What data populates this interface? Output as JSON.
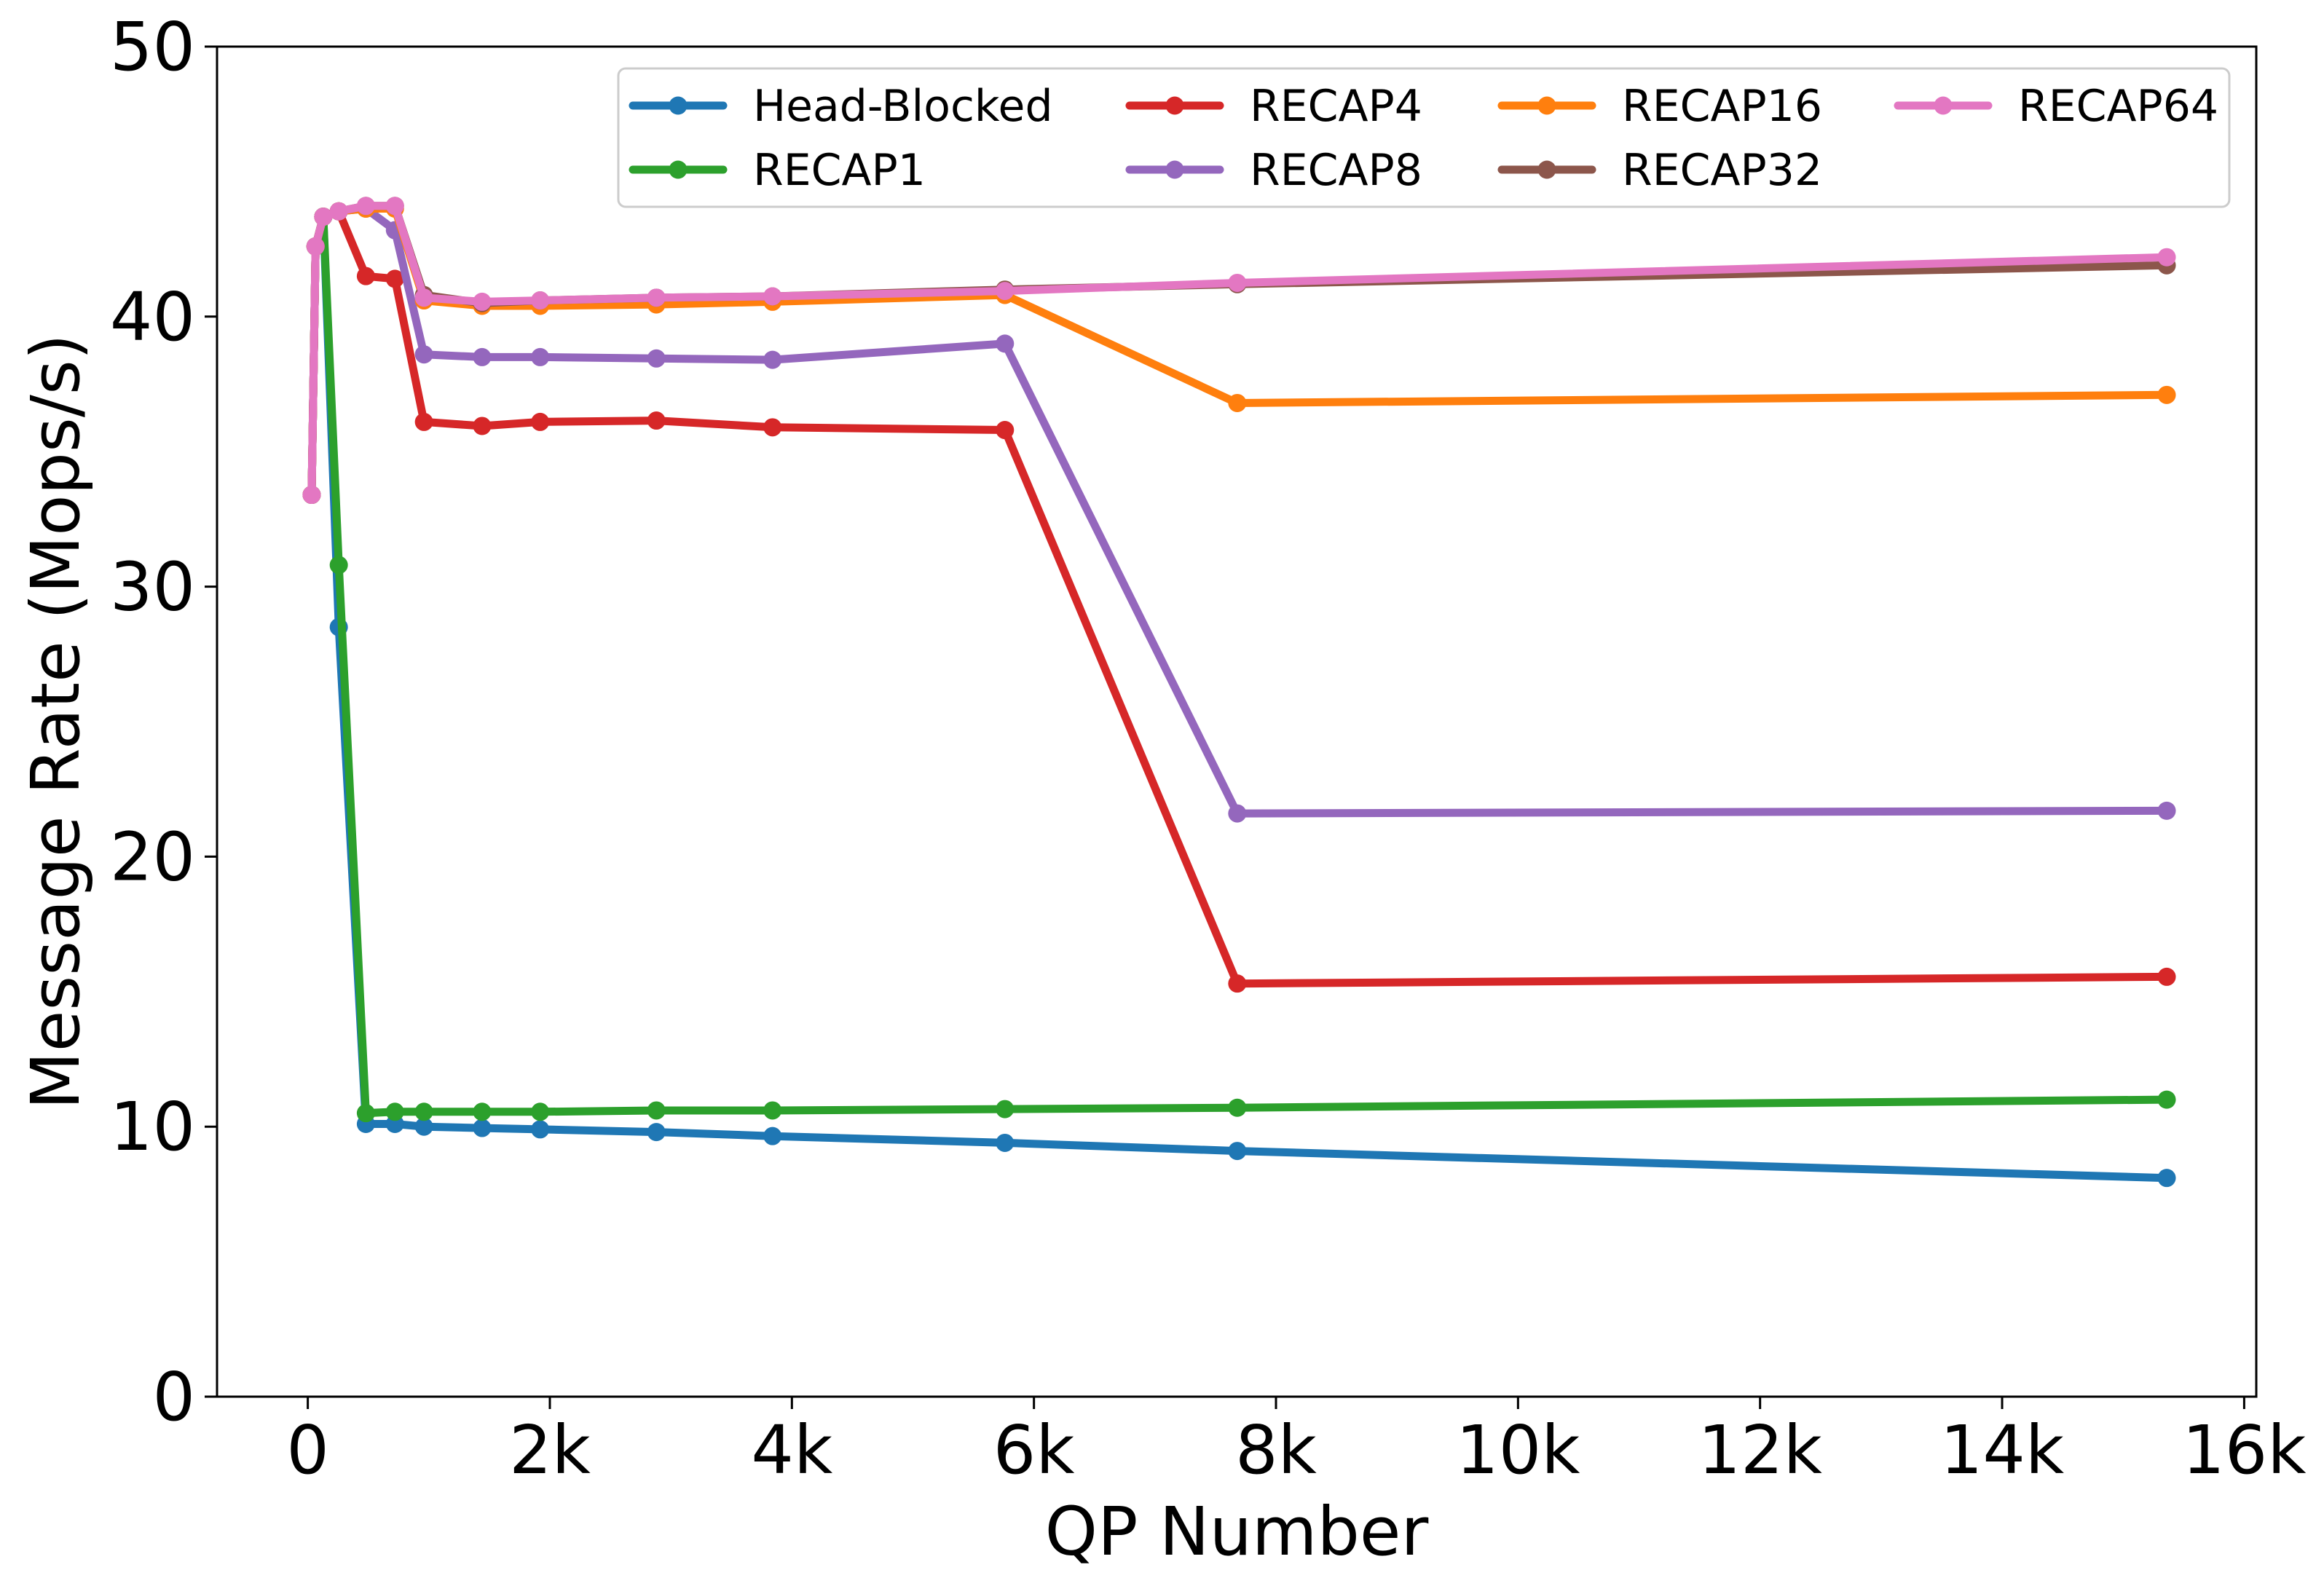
{
  "chart_data": {
    "type": "line",
    "title": "",
    "xlabel": "QP Number",
    "ylabel": "Message Rate (Mops/s)",
    "xlim": [
      -750,
      16100
    ],
    "ylim": [
      0,
      50
    ],
    "grid": false,
    "legend_placement": "top-right",
    "x_ticks": [
      {
        "value": 0,
        "label": "0"
      },
      {
        "value": 2000,
        "label": "2k"
      },
      {
        "value": 4000,
        "label": "4k"
      },
      {
        "value": 6000,
        "label": "6k"
      },
      {
        "value": 8000,
        "label": "8k"
      },
      {
        "value": 10000,
        "label": "10k"
      },
      {
        "value": 12000,
        "label": "12k"
      },
      {
        "value": 14000,
        "label": "14k"
      },
      {
        "value": 16000,
        "label": "16k"
      }
    ],
    "y_ticks": [
      {
        "value": 0,
        "label": "0"
      },
      {
        "value": 10,
        "label": "10"
      },
      {
        "value": 20,
        "label": "20"
      },
      {
        "value": 30,
        "label": "30"
      },
      {
        "value": 40,
        "label": "40"
      },
      {
        "value": 50,
        "label": "50"
      }
    ],
    "x": [
      32,
      64,
      128,
      256,
      480,
      720,
      960,
      1440,
      1920,
      2880,
      3840,
      5760,
      7680,
      15360
    ],
    "series": [
      {
        "name": "Head-Blocked",
        "color": "#1f77b4",
        "values": [
          33.4,
          42.6,
          43.7,
          28.5,
          10.1,
          10.1,
          10.0,
          9.95,
          9.9,
          9.8,
          9.65,
          9.4,
          9.1,
          8.1
        ]
      },
      {
        "name": "RECAP1",
        "color": "#2ca02c",
        "values": [
          33.4,
          42.6,
          43.7,
          30.8,
          10.5,
          10.55,
          10.55,
          10.55,
          10.55,
          10.6,
          10.6,
          10.65,
          10.7,
          11.0
        ]
      },
      {
        "name": "RECAP4",
        "color": "#d62728",
        "values": [
          33.4,
          42.6,
          43.7,
          43.9,
          41.5,
          41.4,
          36.1,
          35.95,
          36.1,
          36.15,
          35.9,
          35.8,
          15.3,
          15.55
        ]
      },
      {
        "name": "RECAP8",
        "color": "#9467bd",
        "values": [
          33.4,
          42.6,
          43.7,
          43.9,
          44.0,
          43.2,
          38.6,
          38.5,
          38.5,
          38.45,
          38.4,
          39.0,
          21.6,
          21.7
        ]
      },
      {
        "name": "RECAP16",
        "color": "#ff7f0e",
        "values": [
          33.4,
          42.6,
          43.7,
          43.9,
          44.0,
          44.0,
          40.6,
          40.4,
          40.4,
          40.45,
          40.55,
          40.8,
          36.8,
          37.1
        ]
      },
      {
        "name": "RECAP32",
        "color": "#8c564b",
        "values": [
          33.4,
          42.6,
          43.7,
          43.9,
          44.1,
          44.1,
          40.8,
          40.5,
          40.6,
          40.7,
          40.75,
          41.0,
          41.2,
          41.9
        ]
      },
      {
        "name": "RECAP64",
        "color": "#e377c2",
        "values": [
          33.4,
          42.6,
          43.7,
          43.9,
          44.1,
          44.1,
          40.7,
          40.55,
          40.6,
          40.7,
          40.75,
          40.95,
          41.25,
          42.2
        ]
      }
    ]
  }
}
